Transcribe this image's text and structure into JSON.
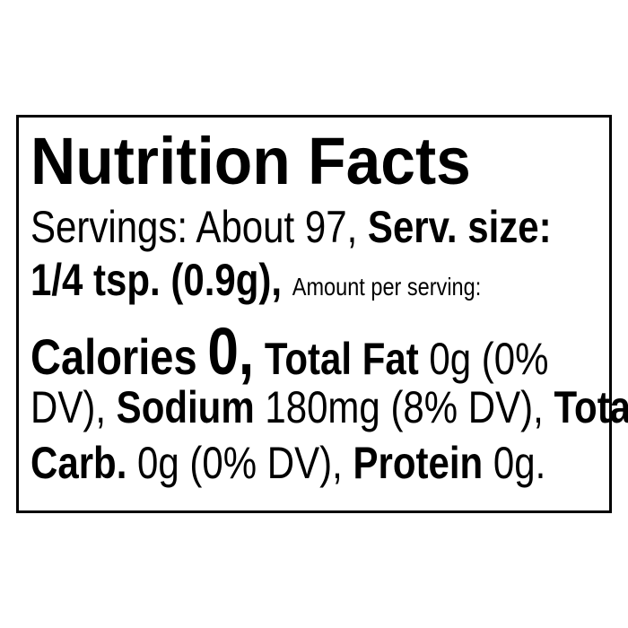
{
  "label": {
    "title": "Nutrition Facts",
    "servings_text": "Servings: About 97,",
    "serv_size_label": "Serv. size:",
    "serv_size_value": "1/4 tsp. (0.9g),",
    "amount_per_serving": "Amount per serving:",
    "calories_label": "Calories",
    "calories_value": "0,",
    "total_fat_label": "Total Fat",
    "total_fat_value_a": "0g (0%",
    "total_fat_value_b": "DV),",
    "sodium_label": "Sodium",
    "sodium_value": "180mg (8% DV),",
    "total_carb_label_a": "Total",
    "total_carb_label_b": "Carb.",
    "total_carb_value": "0g (0% DV),",
    "protein_label": "Protein",
    "protein_value": "0g."
  }
}
